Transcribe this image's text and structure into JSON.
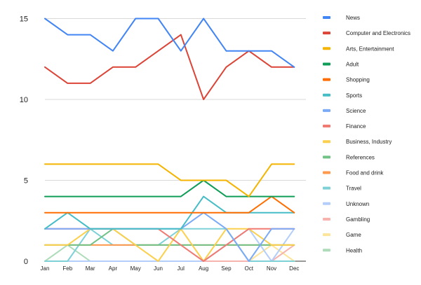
{
  "chart_data": {
    "type": "line",
    "title": "",
    "xlabel": "",
    "ylabel": "",
    "categories": [
      "Jan",
      "Feb",
      "Mar",
      "Apr",
      "May",
      "Jun",
      "Jul",
      "Aug",
      "Sep",
      "Oct",
      "Nov",
      "Dec"
    ],
    "yticks": [
      0,
      5,
      10,
      15
    ],
    "ylim": [
      0,
      15.5
    ],
    "grid": true,
    "legend_position": "right",
    "series": [
      {
        "name": "News",
        "color": "#4285F4",
        "values": [
          15,
          14,
          14,
          13,
          15,
          15,
          13,
          15,
          13,
          13,
          13,
          12
        ]
      },
      {
        "name": "Computer and Electronics",
        "color": "#DB4437",
        "values": [
          12,
          11,
          11,
          12,
          12,
          13,
          14,
          10,
          12,
          13,
          12,
          12
        ]
      },
      {
        "name": "Arts, Entertainment",
        "color": "#F4B400",
        "values": [
          6,
          6,
          6,
          6,
          6,
          6,
          5,
          5,
          5,
          4,
          6,
          6
        ]
      },
      {
        "name": "Adult",
        "color": "#0F9D58",
        "values": [
          4,
          4,
          4,
          4,
          4,
          4,
          4,
          5,
          4,
          4,
          4,
          4
        ]
      },
      {
        "name": "Shopping",
        "color": "#FF6D00",
        "values": [
          3,
          3,
          3,
          3,
          3,
          3,
          3,
          3,
          3,
          3,
          4,
          3
        ]
      },
      {
        "name": "Sports",
        "color": "#46BDC6",
        "values": [
          2,
          3,
          2,
          2,
          2,
          2,
          2,
          4,
          3,
          3,
          3,
          3
        ]
      },
      {
        "name": "Science",
        "color": "#7BAAF7",
        "values": [
          2,
          2,
          2,
          2,
          2,
          2,
          2,
          3,
          2,
          0,
          2,
          2
        ]
      },
      {
        "name": "Finance",
        "color": "#F07B72",
        "values": [
          2,
          2,
          2,
          2,
          2,
          2,
          1,
          0,
          1,
          2,
          2,
          2
        ]
      },
      {
        "name": "Business, Industry",
        "color": "#FCD04F",
        "values": [
          1,
          1,
          2,
          2,
          1,
          0,
          2,
          0,
          2,
          2,
          1,
          1
        ]
      },
      {
        "name": "References",
        "color": "#71C287",
        "values": [
          1,
          1,
          1,
          2,
          1,
          1,
          1,
          1,
          1,
          1,
          1,
          1
        ]
      },
      {
        "name": "Food and drink",
        "color": "#FF994D",
        "values": [
          1,
          1,
          1,
          1,
          1,
          1,
          1,
          1,
          1,
          1,
          1,
          1
        ]
      },
      {
        "name": "Travel",
        "color": "#7ED1D7",
        "values": [
          0,
          0,
          2,
          1,
          1,
          1,
          2,
          2,
          2,
          0,
          0,
          0
        ]
      },
      {
        "name": "Unknown",
        "color": "#B3CEFB",
        "values": [
          0,
          0,
          0,
          0,
          0,
          0,
          0,
          0,
          1,
          2,
          0,
          2
        ]
      },
      {
        "name": "Gambling",
        "color": "#F7B4AE",
        "values": [
          0,
          0,
          0,
          0,
          0,
          0,
          0,
          0,
          0,
          0,
          0,
          1
        ]
      },
      {
        "name": "Game",
        "color": "#FDE49B",
        "values": [
          0,
          0,
          0,
          0,
          0,
          0,
          0,
          0,
          0,
          0,
          1,
          0
        ]
      },
      {
        "name": "Health",
        "color": "#AEDCBA",
        "values": [
          0,
          1,
          0,
          0,
          0,
          0,
          0,
          0,
          0,
          0,
          0,
          0
        ]
      }
    ]
  }
}
